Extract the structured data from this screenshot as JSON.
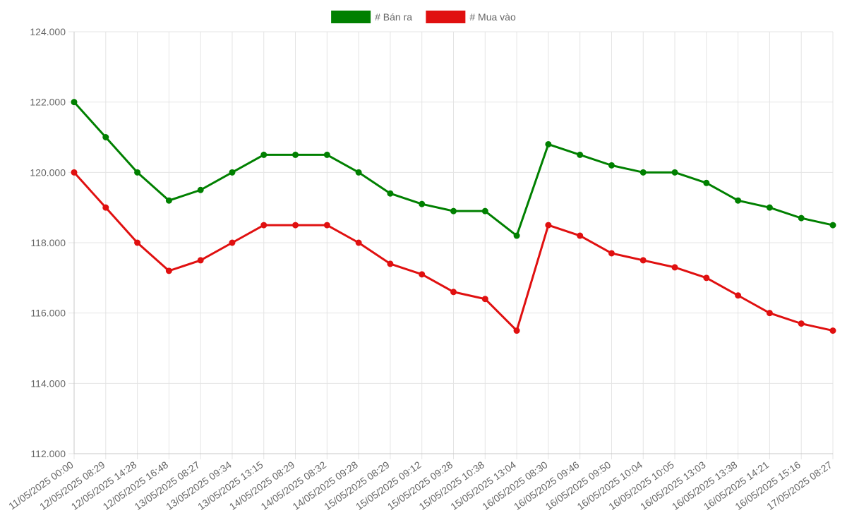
{
  "chart_data": {
    "type": "line",
    "title": "",
    "xlabel": "",
    "ylabel": "",
    "ylim": [
      112000,
      124000
    ],
    "y_ticks": [
      112000,
      114000,
      116000,
      118000,
      120000,
      122000,
      124000
    ],
    "y_tick_labels": [
      "112.000",
      "114.000",
      "116.000",
      "118.000",
      "120.000",
      "122.000",
      "124.000"
    ],
    "grid": true,
    "legend_position": "top-center",
    "categories": [
      "11/05/2025 00:00",
      "12/05/2025 08:29",
      "12/05/2025 14:28",
      "12/05/2025 16:48",
      "13/05/2025 08:27",
      "13/05/2025 09:34",
      "13/05/2025 13:15",
      "14/05/2025 08:29",
      "14/05/2025 08:32",
      "14/05/2025 09:28",
      "15/05/2025 08:29",
      "15/05/2025 09:12",
      "15/05/2025 09:28",
      "15/05/2025 10:38",
      "15/05/2025 13:04",
      "16/05/2025 08:30",
      "16/05/2025 09:46",
      "16/05/2025 09:50",
      "16/05/2025 10:04",
      "16/05/2025 10:05",
      "16/05/2025 13:03",
      "16/05/2025 13:38",
      "16/05/2025 14:21",
      "16/05/2025 15:16",
      "17/05/2025 08:27"
    ],
    "series": [
      {
        "name": "# Bán ra",
        "color": "#008000",
        "values": [
          122000,
          121000,
          120000,
          119200,
          119500,
          120000,
          120500,
          120500,
          120500,
          120000,
          119400,
          119100,
          118900,
          118900,
          118200,
          120800,
          120500,
          120200,
          120000,
          120000,
          119700,
          119200,
          119000,
          118700,
          118500
        ]
      },
      {
        "name": "# Mua vào",
        "color": "#e01010",
        "values": [
          120000,
          119000,
          118000,
          117200,
          117500,
          118000,
          118500,
          118500,
          118500,
          118000,
          117400,
          117100,
          116600,
          116400,
          115500,
          118500,
          118200,
          117700,
          117500,
          117300,
          117000,
          116500,
          116000,
          115700,
          115500
        ]
      }
    ]
  }
}
